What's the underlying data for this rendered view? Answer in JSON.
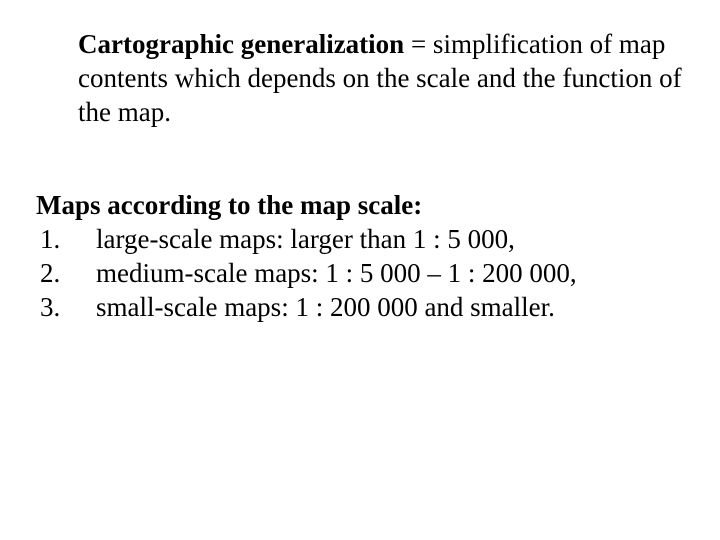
{
  "definition": {
    "term": "Cartographic generalization",
    "rest": " = simplification of map contents which depends on the scale and the function of the map."
  },
  "list": {
    "heading": "Maps according to the map scale:",
    "items": [
      {
        "num": "1.",
        "text": "large-scale maps: larger than 1 : 5 000,"
      },
      {
        "num": "2.",
        "text": "medium-scale maps: 1 : 5 000 – 1 : 200 000,"
      },
      {
        "num": "3.",
        "text": "small-scale maps: 1 : 200 000 and smaller."
      }
    ]
  },
  "style": {
    "font_family": "Times New Roman",
    "base_fontsize_pt": 20,
    "text_color": "#000000",
    "background_color": "#ffffff",
    "bold_weight": 700
  }
}
